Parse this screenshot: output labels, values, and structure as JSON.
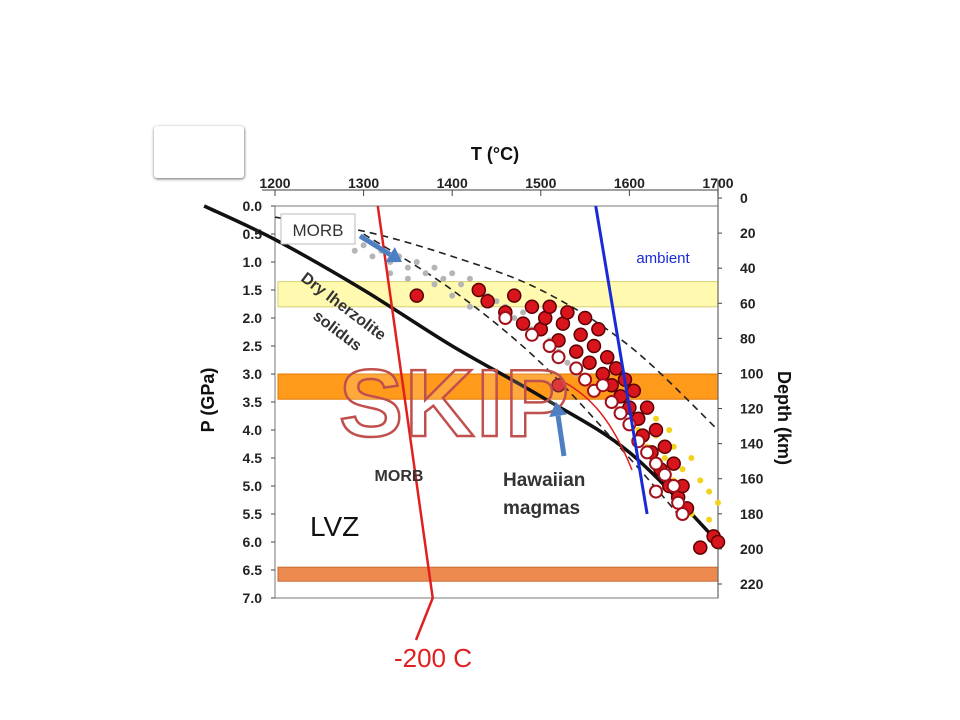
{
  "chart_data": {
    "type": "scatter",
    "x_axis": {
      "label": "T (°C)",
      "ticks": [
        1200,
        1300,
        1400,
        1500,
        1600,
        1700
      ],
      "range": [
        1200,
        1700
      ],
      "position": "top"
    },
    "y_axis_left": {
      "label": "P (GPa)",
      "ticks": [
        "0.0",
        "0.5",
        "1.0",
        "1.5",
        "2.0",
        "2.5",
        "3.0",
        "3.5",
        "4.0",
        "4.5",
        "5.0",
        "5.5",
        "6.0",
        "6.5",
        "7.0"
      ],
      "range": [
        0,
        7
      ],
      "inverted": true
    },
    "y_axis_right": {
      "label": "Depth (km)",
      "ticks": [
        "0",
        "20",
        "40",
        "60",
        "80",
        "100",
        "120",
        "140",
        "160",
        "180",
        "200",
        "220"
      ],
      "range": [
        0,
        220
      ]
    },
    "solidus_label": [
      "Dry lherzolite",
      "solidus"
    ],
    "solidus": [
      [
        1120,
        0.0
      ],
      [
        1200,
        0.6
      ],
      [
        1300,
        1.5
      ],
      [
        1400,
        2.5
      ],
      [
        1500,
        3.4
      ],
      [
        1600,
        4.4
      ],
      [
        1700,
        6.0
      ]
    ],
    "dashed_upper": [
      [
        1200,
        0.2
      ],
      [
        1300,
        0.45
      ],
      [
        1400,
        0.9
      ],
      [
        1500,
        1.5
      ],
      [
        1600,
        2.5
      ],
      [
        1700,
        4.0
      ]
    ],
    "dashed_lower": [
      [
        1300,
        0.5
      ],
      [
        1400,
        1.5
      ],
      [
        1500,
        2.8
      ],
      [
        1600,
        4.5
      ],
      [
        1660,
        5.6
      ]
    ],
    "bands": [
      {
        "name": "yellow-band",
        "p_top": 1.35,
        "p_bottom": 1.8,
        "color": "#fffab0"
      },
      {
        "name": "orange-band",
        "p_top": 3.0,
        "p_bottom": 3.45,
        "color": "#ff9a1a"
      },
      {
        "name": "bottom-band",
        "p_top": 6.45,
        "p_bottom": 6.7,
        "color": "#ec8a50"
      }
    ],
    "series": [
      {
        "name": "Hawaiian magmas",
        "marker": "filled-red",
        "points": [
          [
            1360,
            1.6
          ],
          [
            1430,
            1.5
          ],
          [
            1440,
            1.7
          ],
          [
            1460,
            1.9
          ],
          [
            1470,
            1.6
          ],
          [
            1480,
            2.1
          ],
          [
            1490,
            1.8
          ],
          [
            1500,
            2.2
          ],
          [
            1505,
            2.0
          ],
          [
            1510,
            1.8
          ],
          [
            1520,
            2.4
          ],
          [
            1525,
            2.1
          ],
          [
            1530,
            1.9
          ],
          [
            1540,
            2.6
          ],
          [
            1545,
            2.3
          ],
          [
            1550,
            2.0
          ],
          [
            1555,
            2.8
          ],
          [
            1560,
            2.5
          ],
          [
            1565,
            2.2
          ],
          [
            1570,
            3.0
          ],
          [
            1575,
            2.7
          ],
          [
            1580,
            3.2
          ],
          [
            1585,
            2.9
          ],
          [
            1590,
            3.4
          ],
          [
            1595,
            3.1
          ],
          [
            1600,
            3.6
          ],
          [
            1605,
            3.3
          ],
          [
            1610,
            3.8
          ],
          [
            1615,
            4.1
          ],
          [
            1620,
            3.6
          ],
          [
            1625,
            4.4
          ],
          [
            1630,
            4.0
          ],
          [
            1635,
            4.7
          ],
          [
            1640,
            4.3
          ],
          [
            1645,
            5.0
          ],
          [
            1650,
            4.6
          ],
          [
            1655,
            5.2
          ],
          [
            1660,
            5.0
          ],
          [
            1665,
            5.4
          ],
          [
            1680,
            6.1
          ],
          [
            1695,
            5.9
          ],
          [
            1700,
            6.0
          ],
          [
            1520,
            3.2
          ]
        ]
      },
      {
        "name": "Hawaiian magmas (open)",
        "marker": "open-red",
        "points": [
          [
            1460,
            2.0
          ],
          [
            1490,
            2.3
          ],
          [
            1510,
            2.5
          ],
          [
            1520,
            2.7
          ],
          [
            1540,
            2.9
          ],
          [
            1550,
            3.1
          ],
          [
            1560,
            3.3
          ],
          [
            1570,
            3.2
          ],
          [
            1580,
            3.5
          ],
          [
            1590,
            3.7
          ],
          [
            1600,
            3.9
          ],
          [
            1610,
            4.2
          ],
          [
            1620,
            4.4
          ],
          [
            1630,
            4.6
          ],
          [
            1640,
            4.8
          ],
          [
            1650,
            5.0
          ],
          [
            1655,
            5.3
          ],
          [
            1630,
            5.1
          ],
          [
            1660,
            5.5
          ]
        ]
      },
      {
        "name": "MORB",
        "marker": "gray",
        "points": [
          [
            1280,
            0.6
          ],
          [
            1290,
            0.8
          ],
          [
            1300,
            0.7
          ],
          [
            1310,
            0.9
          ],
          [
            1320,
            0.8
          ],
          [
            1330,
            1.0
          ],
          [
            1340,
            0.9
          ],
          [
            1350,
            1.1
          ],
          [
            1360,
            1.0
          ],
          [
            1370,
            1.2
          ],
          [
            1380,
            1.1
          ],
          [
            1390,
            1.3
          ],
          [
            1400,
            1.2
          ],
          [
            1410,
            1.4
          ],
          [
            1420,
            1.3
          ],
          [
            1430,
            1.5
          ],
          [
            1440,
            1.6
          ],
          [
            1450,
            1.7
          ],
          [
            1460,
            1.8
          ],
          [
            1470,
            2.0
          ],
          [
            1480,
            1.9
          ],
          [
            1490,
            2.2
          ],
          [
            1500,
            2.1
          ],
          [
            1510,
            2.4
          ],
          [
            1520,
            2.6
          ],
          [
            1530,
            2.8
          ],
          [
            1540,
            3.0
          ],
          [
            1380,
            1.4
          ],
          [
            1400,
            1.6
          ],
          [
            1420,
            1.8
          ],
          [
            1350,
            1.3
          ],
          [
            1330,
            1.2
          ]
        ]
      },
      {
        "name": "yellow",
        "marker": "yellow",
        "points": [
          [
            1610,
            4.0
          ],
          [
            1620,
            4.3
          ],
          [
            1630,
            4.1
          ],
          [
            1640,
            4.5
          ],
          [
            1650,
            4.3
          ],
          [
            1660,
            4.7
          ],
          [
            1670,
            4.5
          ],
          [
            1680,
            4.9
          ],
          [
            1690,
            5.1
          ],
          [
            1700,
            5.3
          ],
          [
            1650,
            4.9
          ],
          [
            1660,
            5.2
          ],
          [
            1670,
            5.5
          ],
          [
            1690,
            5.6
          ],
          [
            1630,
            3.8
          ],
          [
            1645,
            4.0
          ]
        ]
      }
    ],
    "adiabats": [
      {
        "name": "MORB",
        "color": "#e02020",
        "points": [
          [
            1316,
            0.0
          ],
          [
            1378,
            7.0
          ]
        ],
        "bottom_label": "-200 C"
      },
      {
        "name": "ambient",
        "color": "#1a2bd6",
        "points": [
          [
            1562,
            0.0
          ],
          [
            1620,
            5.5
          ]
        ]
      }
    ],
    "annotations": {
      "morb_top": "MORB",
      "ambient": "ambient",
      "morb_mid": "MORB",
      "hawaiian": [
        "Hawaiian",
        "magmas"
      ],
      "lvz": "LVZ",
      "bottom": "-200 C",
      "stamp": "SKIP"
    },
    "colors": {
      "red_line": "#e02020",
      "blue_line": "#1a2bd6",
      "arrow": "#4f7fc3",
      "stamp": "#c0504d"
    }
  }
}
